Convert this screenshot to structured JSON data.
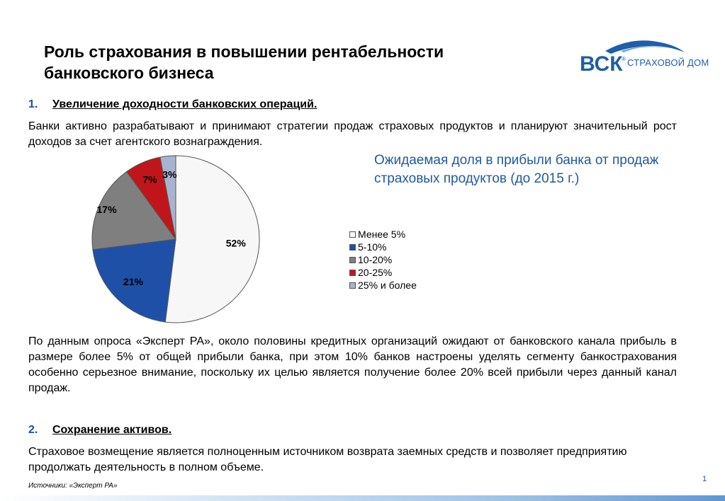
{
  "title_line1": "Роль страхования в повышении рентабельности",
  "title_line2": "банковского бизнеса",
  "logo": {
    "brand": "ВСК",
    "reg": "®",
    "subtitle": "СТРАХОВОЙ ДОМ"
  },
  "section1": {
    "num": "1.",
    "heading": "Увеличение доходности банковских операций.",
    "text": "Банки активно разрабатывают и принимают стратегии продаж страховых продуктов и планируют значительный рост доходов за счет агентского вознаграждения."
  },
  "chart_title": "Ожидаемая доля в прибыли банка от продаж страховых продуктов (до 2015 г.)",
  "chart_data": {
    "type": "pie",
    "title": "Ожидаемая доля в прибыли банка от продаж страховых продуктов (до 2015 г.)",
    "categories": [
      "Менее 5%",
      "5-10%",
      "10-20%",
      "20-25%",
      "25% и более"
    ],
    "values": [
      52,
      21,
      17,
      7,
      3
    ],
    "labels": [
      "52%",
      "21%",
      "17%",
      "7%",
      "3%"
    ],
    "colors": [
      "#f7f7f7",
      "#1e50a8",
      "#7f7f7f",
      "#c0161b",
      "#a8b3cf"
    ],
    "legend_position": "right"
  },
  "paragraph2": "По данным опроса «Эксперт РА», около половины кредитных организаций  ожидают от банковского канала прибыль в размере более  5% от общей прибыли банка, при этом 10% банков настроены уделять сегменту банкострахования особенно серьезное внимание, поскольку их целью является получение более 20% всей прибыли через данный канал продаж.",
  "section2": {
    "num": "2.",
    "heading": "Сохранение активов.",
    "text": "Страховое возмещение является полноценным источником возврата заемных средств и позволяет предприятию продолжать деятельность в полном объеме."
  },
  "source": "Источники: «Эксперт РА»",
  "page_number": "1"
}
